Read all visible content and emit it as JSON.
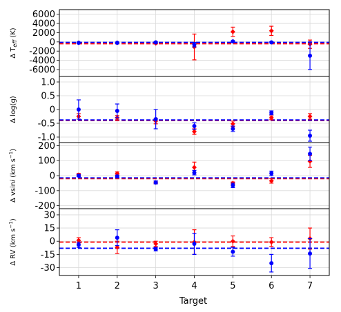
{
  "chart_data": {
    "type": "scatter",
    "x_axis": {
      "label": "Target",
      "ticks": [
        1,
        2,
        3,
        4,
        5,
        6,
        7
      ],
      "xlim": [
        0.5,
        7.5
      ]
    },
    "colors": {
      "red": "#ff0000",
      "blue": "#0000ff",
      "grid": "#d9d9d9"
    },
    "panels": [
      {
        "id": "teff",
        "ylabel_prefix": "Δ T",
        "ylabel_sub": "eff",
        "ylabel_suffix": " (K)",
        "ylim": [
          -7500,
          7000
        ],
        "yticks": [
          6000,
          4000,
          2000,
          0,
          -2000,
          -4000,
          -6000
        ],
        "series": [
          {
            "color": "red",
            "y": [
              -200,
              -200,
              -300,
              -1100,
              2200,
              2400,
              -500
            ],
            "err": [
              100,
              100,
              150,
              2800,
              1000,
              1000,
              900
            ],
            "median": -400
          },
          {
            "color": "blue",
            "y": [
              -200,
              -200,
              -100,
              -600,
              100,
              -100,
              -3000
            ],
            "err": [
              150,
              150,
              150,
              500,
              150,
              150,
              3000
            ],
            "median": -100
          }
        ]
      },
      {
        "id": "logg",
        "ylabel_prefix": "Δ log(g)",
        "ylim": [
          -1.2,
          1.2
        ],
        "yticks": [
          1.0,
          0.5,
          0,
          -0.5,
          -1.0
        ],
        "tick_text": [
          "1.0",
          "0.5",
          "0",
          "-0.5",
          "-1.0"
        ],
        "series": [
          {
            "color": "red",
            "y": [
              -0.25,
              -0.3,
              -0.42,
              -0.8,
              -0.52,
              -0.3,
              -0.25
            ],
            "err": [
              0.1,
              0.08,
              0.1,
              0.1,
              0.1,
              0.07,
              0.1
            ],
            "median": -0.4
          },
          {
            "color": "blue",
            "y": [
              0.0,
              -0.05,
              -0.35,
              -0.6,
              -0.7,
              -0.12,
              -0.95
            ],
            "err": [
              0.35,
              0.25,
              0.35,
              0.12,
              0.1,
              0.07,
              0.2
            ],
            "median": -0.38
          }
        ]
      },
      {
        "id": "vsini",
        "ylabel_prefix": "Δ vsin",
        "ylabel_italic": "i",
        "ylabel_suffix": " (km s",
        "ylabel_sup": "−1",
        "ylabel_end": ")",
        "ylim": [
          -220,
          220
        ],
        "yticks": [
          200,
          100,
          0,
          -100,
          -200
        ],
        "series": [
          {
            "color": "red",
            "y": [
              5,
              15,
              -45,
              55,
              -50,
              -35,
              95
            ],
            "err": [
              10,
              10,
              8,
              35,
              8,
              15,
              40
            ],
            "median": -20
          },
          {
            "color": "blue",
            "y": [
              0,
              -5,
              -45,
              20,
              -65,
              15,
              145
            ],
            "err": [
              8,
              8,
              10,
              15,
              15,
              15,
              45
            ],
            "median": -15
          }
        ]
      },
      {
        "id": "rv",
        "ylabel_prefix": "Δ RV (km s",
        "ylabel_sup": "−1",
        "ylabel_end": ")",
        "ylim": [
          -39,
          37
        ],
        "yticks": [
          30,
          15,
          0,
          -15,
          -30
        ],
        "series": [
          {
            "color": "red",
            "y": [
              1,
              -7,
              -3,
              -1,
              0,
              -1,
              3
            ],
            "err": [
              3,
              7,
              3,
              14,
              6,
              5,
              12
            ],
            "median": -1
          },
          {
            "color": "blue",
            "y": [
              -4,
              4,
              -9,
              -3,
              -12,
              -25,
              -14
            ],
            "err": [
              3,
              9,
              2,
              12,
              5,
              10,
              17
            ],
            "median": -8
          }
        ]
      }
    ]
  }
}
